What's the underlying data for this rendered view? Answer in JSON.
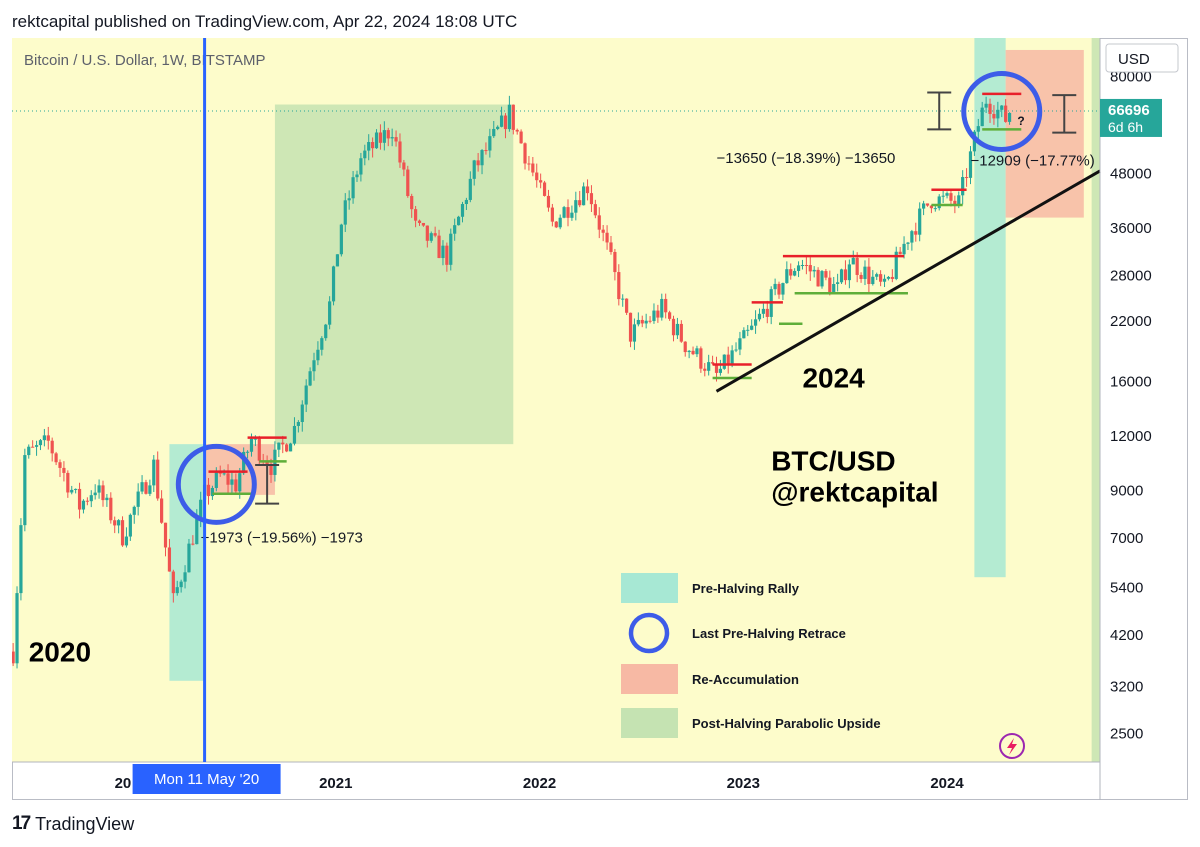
{
  "header": {
    "published_line": "rektcapital published on TradingView.com, Apr 22, 2024 18:08 UTC"
  },
  "footer": {
    "brand": "TradingView",
    "logo_glyph": "17"
  },
  "colors": {
    "plot_bg": "#fdfccb",
    "candle_up": "#26a69a",
    "candle_down": "#ef5350",
    "pre_halving": "#a7e8d4",
    "re_accumulation": "#f7b9a4",
    "post_halving": "#c5e3b2",
    "circle": "#3d5ce8",
    "crosshair": "#2962ff",
    "price_tag": "#26a69a"
  },
  "chart_data": {
    "type": "candlestick",
    "symbol": "Bitcoin / U.S. Dollar, 1W, BITSTAMP",
    "currency": "USD",
    "y_scale": "log",
    "y_ticks": [
      2500,
      3200,
      4200,
      5400,
      7000,
      9000,
      12000,
      16000,
      22000,
      28000,
      36000,
      48000,
      80000
    ],
    "x_ticks": [
      {
        "label": "2021",
        "date": "2021-01-01"
      },
      {
        "label": "2022",
        "date": "2022-01-01"
      },
      {
        "label": "2023",
        "date": "2023-01-01"
      },
      {
        "label": "2024",
        "date": "2024-01-01"
      }
    ],
    "x_range": [
      "2019-06-01",
      "2024-10-01"
    ],
    "y_range": [
      2150,
      98000
    ],
    "crosshair": {
      "date": "2020-05-11",
      "label_prefix": "20",
      "label": "Mon 11 May '20"
    },
    "last_price": {
      "value": 66696,
      "label": "66696",
      "countdown": "6d 6h"
    },
    "price_path": [
      [
        "2019-06-03",
        3850
      ],
      [
        "2019-06-24",
        10800
      ],
      [
        "2019-08-05",
        11600
      ],
      [
        "2019-09-30",
        8300
      ],
      [
        "2019-10-28",
        9200
      ],
      [
        "2019-12-16",
        7100
      ],
      [
        "2020-01-27",
        9400
      ],
      [
        "2020-02-10",
        10300
      ],
      [
        "2020-03-16",
        5000
      ],
      [
        "2020-05-11",
        8800
      ],
      [
        "2020-06-08",
        9700
      ],
      [
        "2020-07-06",
        9300
      ],
      [
        "2020-08-03",
        11800
      ],
      [
        "2020-09-07",
        10300
      ],
      [
        "2020-10-19",
        12500
      ],
      [
        "2020-11-23",
        18500
      ],
      [
        "2020-12-21",
        24000
      ],
      [
        "2021-01-11",
        37000
      ],
      [
        "2021-02-15",
        52000
      ],
      [
        "2021-04-12",
        61000
      ],
      [
        "2021-05-24",
        36000
      ],
      [
        "2021-07-19",
        31000
      ],
      [
        "2021-09-06",
        49000
      ],
      [
        "2021-11-08",
        66000
      ],
      [
        "2022-01-24",
        37000
      ],
      [
        "2022-03-28",
        45000
      ],
      [
        "2022-05-09",
        30000
      ],
      [
        "2022-06-13",
        20500
      ],
      [
        "2022-08-08",
        23500
      ],
      [
        "2022-09-19",
        19500
      ],
      [
        "2022-11-14",
        16500
      ],
      [
        "2023-01-16",
        21000
      ],
      [
        "2023-03-20",
        28000
      ],
      [
        "2023-04-10",
        30000
      ],
      [
        "2023-06-19",
        26000
      ],
      [
        "2023-07-10",
        30500
      ],
      [
        "2023-09-11",
        26000
      ],
      [
        "2023-10-23",
        34500
      ],
      [
        "2023-12-04",
        42000
      ],
      [
        "2024-01-22",
        41000
      ],
      [
        "2024-02-26",
        62000
      ],
      [
        "2024-03-11",
        71000
      ],
      [
        "2024-04-15",
        64000
      ],
      [
        "2024-04-22",
        66696
      ]
    ],
    "zones": [
      {
        "kind": "pre_halving",
        "x0": "2020-03-09",
        "x1": "2020-05-11",
        "y0": 3300,
        "y1": 11500
      },
      {
        "kind": "re_accumulation",
        "x0": "2020-05-11",
        "x1": "2020-09-14",
        "y0": 8800,
        "y1": 11500
      },
      {
        "kind": "post_halving",
        "x0": "2020-09-14",
        "x1": "2021-11-15",
        "y0": 11500,
        "y1": 69000
      },
      {
        "kind": "pre_halving",
        "x0": "2024-02-19",
        "x1": "2024-04-15",
        "y0": 5700,
        "y1": 104000
      },
      {
        "kind": "re_accumulation",
        "x0": "2024-04-15",
        "x1": "2024-09-02",
        "y0": 38000,
        "y1": 92000
      },
      {
        "kind": "post_halving",
        "x0": "2024-09-16",
        "x1": "2024-10-01",
        "y0": 2150,
        "y1": 104000
      }
    ],
    "levels": [
      {
        "color": "red",
        "x0": "2020-05-18",
        "x1": "2020-07-27",
        "y": 9950
      },
      {
        "color": "green",
        "x0": "2020-05-25",
        "x1": "2020-08-03",
        "y": 8850
      },
      {
        "color": "red",
        "x0": "2020-07-27",
        "x1": "2020-10-05",
        "y": 11900
      },
      {
        "color": "green",
        "x0": "2020-08-17",
        "x1": "2020-10-05",
        "y": 10500
      },
      {
        "color": "red",
        "x0": "2022-11-07",
        "x1": "2023-01-16",
        "y": 17500
      },
      {
        "color": "green",
        "x0": "2022-11-07",
        "x1": "2023-01-16",
        "y": 16300
      },
      {
        "color": "red",
        "x0": "2023-01-16",
        "x1": "2023-03-13",
        "y": 24300
      },
      {
        "color": "green",
        "x0": "2023-03-06",
        "x1": "2023-04-17",
        "y": 21700
      },
      {
        "color": "red",
        "x0": "2023-03-13",
        "x1": "2023-10-16",
        "y": 31000
      },
      {
        "color": "green",
        "x0": "2023-04-03",
        "x1": "2023-10-23",
        "y": 25500
      },
      {
        "color": "red",
        "x0": "2023-12-04",
        "x1": "2024-02-05",
        "y": 44000
      },
      {
        "color": "green",
        "x0": "2023-12-04",
        "x1": "2024-01-29",
        "y": 40600
      },
      {
        "color": "red",
        "x0": "2024-03-04",
        "x1": "2024-05-13",
        "y": 73000
      },
      {
        "color": "green",
        "x0": "2024-03-04",
        "x1": "2024-05-13",
        "y": 60500
      }
    ],
    "trendline": {
      "x0": "2022-11-14",
      "y0": 15200,
      "x1": "2024-10-01",
      "y1": 48600
    },
    "circles": [
      {
        "date": "2020-06-01",
        "price": 9300
      },
      {
        "date": "2024-04-08",
        "price": 66500
      }
    ],
    "measure_brackets": [
      {
        "date": "2020-08-31",
        "top": 10300,
        "bottom": 8400
      },
      {
        "date": "2023-12-18",
        "top": 73500,
        "bottom": 60500
      },
      {
        "date": "2024-07-29",
        "top": 72500,
        "bottom": 59500
      }
    ],
    "measure_labels": [
      {
        "text": "−1973 (−19.56%) −1973",
        "date": "2020-05-04",
        "price": 6850
      },
      {
        "text": "−13650 (−18.39%) −13650",
        "date": "2022-11-14",
        "price": 50700
      },
      {
        "text": "−12909 (−17.77%)",
        "date": "2024-02-12",
        "price": 50000
      }
    ],
    "question_mark": {
      "text": "?",
      "date": "2024-05-06",
      "price": 62000
    },
    "annotations": [
      {
        "text": "2020",
        "date": "2019-07-01",
        "price": 3650,
        "size": 28
      },
      {
        "text": "2024",
        "date": "2023-04-17",
        "price": 15500,
        "size": 28
      },
      {
        "text": "BTC/USD",
        "date": "2023-02-20",
        "price": 10000,
        "size": 28
      },
      {
        "text": "@rektcapital",
        "date": "2023-02-20",
        "price": 8500,
        "size": 28
      }
    ],
    "legend": {
      "position": "bottom-right",
      "items": [
        {
          "kind": "pre_halving",
          "swatch": "rect",
          "label": "Pre-Halving Rally"
        },
        {
          "kind": "circle",
          "swatch": "circle",
          "label": "Last Pre-Halving Retrace"
        },
        {
          "kind": "re_accumulation",
          "swatch": "rect",
          "label": "Re-Accumulation"
        },
        {
          "kind": "post_halving",
          "swatch": "rect",
          "label": "Post-Halving Parabolic Upside"
        }
      ]
    }
  }
}
